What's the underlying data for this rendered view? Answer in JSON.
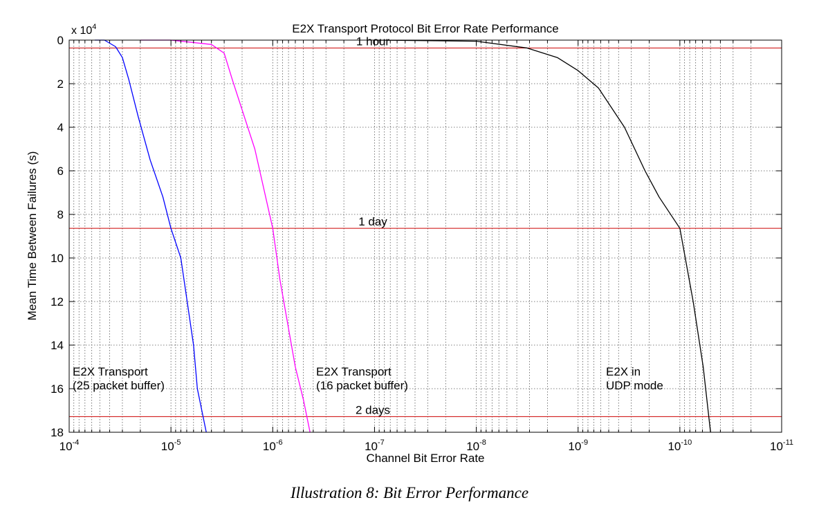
{
  "chart_data": {
    "type": "line",
    "title": "E2X Transport Protocol Bit Error Rate Performance",
    "xlabel": "Channel Bit Error Rate",
    "ylabel": "Mean Time Between Failures (s)",
    "y_multiplier_label": "x 10",
    "y_multiplier_exponent": "4",
    "x_scale": "log",
    "x_reversed": true,
    "x_range": [
      0.0001,
      1e-11
    ],
    "y_reversed": true,
    "y_range": [
      0,
      180000
    ],
    "grid": true,
    "x_ticks": [
      {
        "value": 0.0001,
        "base": "10",
        "exp": "-4"
      },
      {
        "value": 1e-05,
        "base": "10",
        "exp": "-5"
      },
      {
        "value": 1e-06,
        "base": "10",
        "exp": "-6"
      },
      {
        "value": 1e-07,
        "base": "10",
        "exp": "-7"
      },
      {
        "value": 1e-08,
        "base": "10",
        "exp": "-8"
      },
      {
        "value": 1e-09,
        "base": "10",
        "exp": "-9"
      },
      {
        "value": 1e-10,
        "base": "10",
        "exp": "-10"
      },
      {
        "value": 1e-11,
        "base": "10",
        "exp": "-11"
      }
    ],
    "y_ticks": [
      {
        "value": 0,
        "label": "0"
      },
      {
        "value": 20000,
        "label": "2"
      },
      {
        "value": 40000,
        "label": "4"
      },
      {
        "value": 60000,
        "label": "6"
      },
      {
        "value": 80000,
        "label": "8"
      },
      {
        "value": 100000,
        "label": "10"
      },
      {
        "value": 120000,
        "label": "12"
      },
      {
        "value": 140000,
        "label": "14"
      },
      {
        "value": 160000,
        "label": "16"
      },
      {
        "value": 180000,
        "label": "18"
      }
    ],
    "series": [
      {
        "color": "#0000ff",
        "x": [
          5.6e-05,
          4.5e-05,
          3.5e-05,
          3e-05,
          2.6e-05,
          2.1e-05,
          1.6e-05,
          1.2e-05,
          1e-05,
          8e-06,
          6e-06,
          5.5e-06,
          4.5e-06
        ],
        "y": [
          0,
          0,
          3000,
          8000,
          18000,
          35000,
          55000,
          72000,
          86400,
          100000,
          140000,
          160000,
          180000
        ]
      },
      {
        "color": "#ff00ff",
        "x": [
          2e-05,
          1e-05,
          4e-06,
          3e-06,
          2.5e-06,
          1.5e-06,
          1e-06,
          8.5e-07,
          6e-07,
          5e-07,
          4.3e-07
        ],
        "y": [
          0,
          0,
          2000,
          6000,
          18000,
          50000,
          86400,
          110000,
          150000,
          165000,
          180000
        ]
      },
      {
        "color": "#000000",
        "x": [
          1e-07,
          1e-08,
          3.2e-09,
          1.6e-09,
          1e-09,
          6.3e-10,
          3.5e-10,
          2.2e-10,
          1.6e-10,
          1e-10,
          7.4e-11,
          5.9e-11,
          5e-11
        ],
        "y": [
          0,
          500,
          3600,
          8000,
          14000,
          22000,
          40000,
          60000,
          72000,
          86400,
          120000,
          150000,
          180000
        ]
      }
    ],
    "reference_lines": [
      {
        "y": 3600,
        "label": "1 hour",
        "color": "#cc0000"
      },
      {
        "y": 86400,
        "label": "1 day",
        "color": "#cc0000"
      },
      {
        "y": 172800,
        "label": "2 days",
        "color": "#cc0000"
      }
    ],
    "annotations": [
      {
        "lines": [
          "E2X  Transport",
          "(25 packet buffer)"
        ]
      },
      {
        "lines": [
          "E2X  Transport",
          "(16 packet buffer)"
        ]
      },
      {
        "lines": [
          "E2X in",
          "UDP mode"
        ]
      }
    ]
  },
  "caption": "Illustration 8: Bit Error Performance"
}
